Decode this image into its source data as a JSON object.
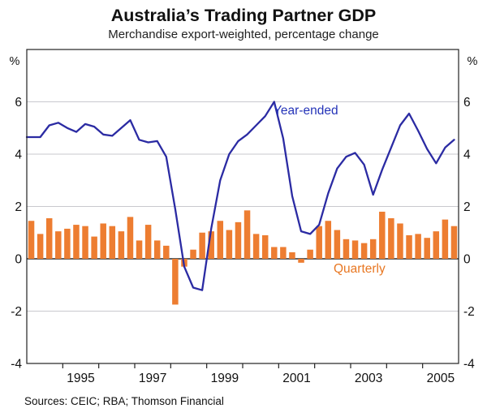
{
  "header": {
    "title": "Australia’s Trading Partner GDP",
    "subtitle": "Merchandise export-weighted, percentage change"
  },
  "footer": {
    "sources": "Sources: CEIC; RBA; Thomson Financial"
  },
  "colors": {
    "line_blue": "#2B2BA3",
    "legend_blue": "#2433B8",
    "bar_orange": "#ED7D31",
    "legend_orange": "#E87722",
    "grid_gray": "#C9C9CE",
    "zero_line": "#4A4A4A",
    "frame_black": "#222222",
    "text_black": "#111111"
  },
  "chart_data": {
    "type": "combo",
    "title": "Australia’s Trading Partner GDP",
    "subtitle": "Merchandise export-weighted, percentage change",
    "ylabel": "%",
    "ylabel_right": "%",
    "ylim": [
      -4,
      8
    ],
    "yticks_labeled": [
      6,
      4,
      2,
      0,
      -2,
      -4
    ],
    "gridlines": [
      6,
      4,
      2,
      -2
    ],
    "zero_baseline": 0,
    "grid_on": true,
    "xlim_years": [
      1994,
      2006
    ],
    "xticks_years": [
      1995,
      1996,
      1997,
      1998,
      1999,
      2000,
      2001,
      2002,
      2003,
      2004,
      2005
    ],
    "xtick_labels": [
      "1995",
      "1997",
      "1999",
      "2001",
      "2003",
      "2005"
    ],
    "xtick_label_years": [
      1995,
      1997,
      1999,
      2001,
      2003,
      2005
    ],
    "legend_position": "inline-annotations",
    "categories": [
      "1994 Q1",
      "1994 Q2",
      "1994 Q3",
      "1994 Q4",
      "1995 Q1",
      "1995 Q2",
      "1995 Q3",
      "1995 Q4",
      "1996 Q1",
      "1996 Q2",
      "1996 Q3",
      "1996 Q4",
      "1997 Q1",
      "1997 Q2",
      "1997 Q3",
      "1997 Q4",
      "1998 Q1",
      "1998 Q2",
      "1998 Q3",
      "1998 Q4",
      "1999 Q1",
      "1999 Q2",
      "1999 Q3",
      "1999 Q4",
      "2000 Q1",
      "2000 Q2",
      "2000 Q3",
      "2000 Q4",
      "2001 Q1",
      "2001 Q2",
      "2001 Q3",
      "2001 Q4",
      "2002 Q1",
      "2002 Q2",
      "2002 Q3",
      "2002 Q4",
      "2003 Q1",
      "2003 Q2",
      "2003 Q3",
      "2003 Q4",
      "2004 Q1",
      "2004 Q2",
      "2004 Q3",
      "2004 Q4",
      "2005 Q1",
      "2005 Q2",
      "2005 Q3",
      "2005 Q4"
    ],
    "series": [
      {
        "name": "Year-ended",
        "type": "line",
        "color": "#2B2BA3",
        "values": [
          4.65,
          4.65,
          5.1,
          5.2,
          5.0,
          4.85,
          5.15,
          5.05,
          4.75,
          4.7,
          5.0,
          5.3,
          4.55,
          4.45,
          4.5,
          3.9,
          1.9,
          -0.3,
          -1.1,
          -1.2,
          1.15,
          3.0,
          4.0,
          4.5,
          4.75,
          5.1,
          5.45,
          6.0,
          4.6,
          2.4,
          1.05,
          0.95,
          1.3,
          2.5,
          3.45,
          3.9,
          4.05,
          3.6,
          2.45,
          3.4,
          4.25,
          5.1,
          5.55,
          4.9,
          4.2,
          3.65,
          4.25,
          4.55
        ]
      },
      {
        "name": "Quarterly",
        "type": "bar",
        "color": "#ED7D31",
        "values": [
          1.45,
          0.95,
          1.55,
          1.05,
          1.15,
          1.3,
          1.25,
          0.85,
          1.35,
          1.25,
          1.05,
          1.6,
          0.7,
          1.3,
          0.7,
          0.5,
          -1.75,
          -0.3,
          0.35,
          1.0,
          1.05,
          1.45,
          1.1,
          1.4,
          1.85,
          0.95,
          0.9,
          0.45,
          0.45,
          0.25,
          -0.15,
          0.35,
          1.25,
          1.45,
          1.1,
          0.75,
          0.7,
          0.6,
          0.75,
          1.8,
          1.55,
          1.35,
          0.9,
          0.95,
          0.8,
          1.05,
          1.5,
          1.25
        ]
      }
    ]
  }
}
